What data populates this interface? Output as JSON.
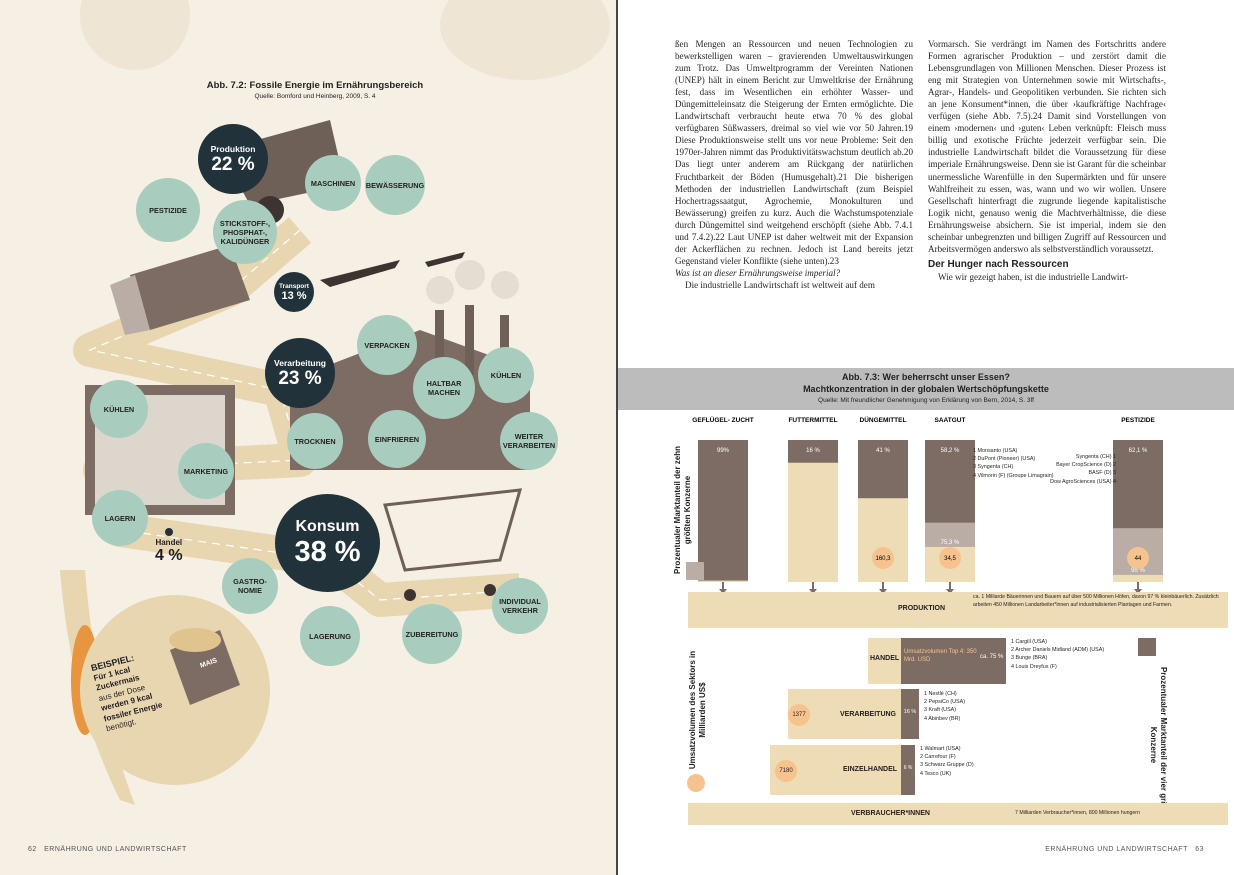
{
  "left": {
    "fig_title": "Abb. 7.2: Fossile Energie im Ernährungsbereich",
    "fig_source": "Quelle: Bomford und Heinberg, 2009, S. 4",
    "produktion": {
      "label": "Produktion",
      "value": "22 %"
    },
    "verarbeitung": {
      "label": "Verarbeitung",
      "value": "23 %"
    },
    "konsum": {
      "label": "Konsum",
      "value": "38 %"
    },
    "transport": {
      "label": "Transport",
      "value": "13 %"
    },
    "handel": {
      "label": "Handel",
      "value": "4 %"
    },
    "circles": {
      "pestizide": "PESTIZIDE",
      "maschinen": "MASCHINEN",
      "bewaesserung": "BEWÄSSERUNG",
      "stickstoff": "STICKSTOFF-, PHOSPHAT-, KALIDÜNGER",
      "verpacken": "VERPACKEN",
      "haltbar": "HALTBAR MACHEN",
      "kuehlen_r": "KÜHLEN",
      "kuehlen_l": "KÜHLEN",
      "trocknen": "TROCKNEN",
      "einfrieren": "EINFRIEREN",
      "weiterverarbeiten": "WEITER VERARBEITEN",
      "marketing": "MARKETING",
      "lagern": "LAGERN",
      "gastronomie": "GASTRO- NOMIE",
      "lagerung": "LAGERUNG",
      "zubereitung": "ZUBEREITUNG",
      "individualverkehr": "INDIVIDUAL VERKEHR"
    },
    "beispiel": {
      "head": "BEISPIEL:",
      "line1": "Für 1 kcal",
      "line2": "Zuckermais",
      "line3": "aus der Dose",
      "line4": "werden 9 kcal",
      "line5": "fossiler Energie",
      "line6": "benötigt.",
      "can": "MAIS"
    },
    "footer": {
      "page": "62",
      "chapter": "ERNÄHRUNG UND LANDWIRTSCHAFT"
    }
  },
  "right": {
    "col1": "ßen Mengen an Ressourcen und neuen Technologien zu bewerkstelligen waren – gravierenden Umweltauswirkungen zum Trotz. Das Umweltprogramm der Vereinten Nationen (UNEP) hält in einem Bericht zur Umweltkrise der Ernährung fest, dass im Wesentlichen ein erhöhter Wasser- und Düngemitteleinsatz die Steigerung der Ernten ermöglichte. Die Landwirtschaft verbraucht heute etwa 70 % des global verfügbaren Süßwassers, dreimal so viel wie vor 50 Jahren.19 Diese Produktionsweise stellt uns vor neue Probleme: Seit den 1970er-Jahren nimmt das Produktivitätswachstum deutlich ab.20 Das liegt unter anderem am Rückgang der natürlichen Fruchtbarkeit der Böden (Humusgehalt).21 Die bisherigen Methoden der industriellen Landwirtschaft (zum Beispiel Hochertragssaatgut, Agrochemie, Monokulturen und Bewässerung) greifen zu kurz. Auch die Wachstumspotenziale durch Düngemittel sind weitgehend erschöpft (siehe Abb. 7.4.1 und 7.4.2).22 Laut UNEP ist daher weltweit mit der Expansion der Ackerflächen zu rechnen. Jedoch ist Land bereits jetzt Gegenstand vieler Konflikte (siehe unten).23",
    "col1_q": "Was ist an dieser Ernährungsweise imperial?",
    "col1_end": "Die industrielle Landwirtschaft ist weltweit auf dem",
    "col2": "Vormarsch. Sie verdrängt im Namen des Fortschritts andere Formen agrarischer Produktion – und zerstört damit die Lebensgrundlagen von Millionen Menschen. Dieser Prozess ist eng mit Strategien von Unternehmen sowie mit Wirtschafts-, Agrar-, Handels- und Geopolitiken verbunden. Sie richten sich an jene Konsument*innen, die über ›kaufkräftige Nachfrage‹ verfügen (siehe Abb. 7.5).24 Damit sind Vorstellungen von einem ›modernen‹ und ›guten‹ Leben verknüpft: Fleisch muss billig und exotische Früchte jederzeit verfügbar sein. Die industrielle Landwirtschaft bildet die Voraussetzung für diese imperiale Ernährungsweise. Denn sie ist Garant für die scheinbar unermessliche Warenfülle in den Supermärkten und für unsere Wahlfreiheit zu essen, was, wann und wo wir wollen. Unsere Gesellschaft hinterfragt die zugrunde liegende kapitalistische Logik nicht, genauso wenig die Machtverhältnisse, die diese Ernährungsweise absichern. Sie ist imperial, indem sie den scheinbar unbegrenzten und billigen Zugriff auf Ressourcen und Arbeitsvermögen anderswo als selbstverständlich voraussetzt.",
    "col2_head": "Der Hunger nach Ressourcen",
    "col2_end": "Wie wir gezeigt haben, ist die industrielle Landwirt-",
    "fig_title1": "Abb. 7.3: Wer beherrscht unser Essen?",
    "fig_title2": "Machtkonzentration in der globalen Wertschöpfungskette",
    "fig_source": "Quelle: Mit freundlicher Genehmigung von Erklärung von Bern, 2014, S. 3ff",
    "y_left": "Prozentualer Marktanteil der zehn größten Konzerne",
    "y_left2": "Umsatzvolumen des Sektors in Milliarden US$",
    "y_right": "Prozentualer Marktanteil der vier größten Konzerne",
    "produktion": "PRODUKTION",
    "produktion_note": "ca. 1 Milliarde Bäuerinnen und Bauern auf über 500 Millionen Höfen, davon 97 % kleinbäuerlich. Zusätzlich arbeiten 450 Millionen Landarbeiter*innen auf industrialisierten Plantagen und Farmen.",
    "handel": "HANDEL",
    "handel_box": "Umsatzvolumen Top 4: 350 Mrd. USD",
    "handel_pct": "ca. 75 %",
    "handel_cos": [
      "Cargill (USA)",
      "Archer Daniels Midland (ADM) (USA)",
      "Bunge (BRA)",
      "Louis Dreyfus (F)"
    ],
    "verarbeitung": "VERARBEITUNG",
    "verarbeitung_val": "1377",
    "verarbeitung_pct": "16 %",
    "verarbeitung_cos": [
      "Nestlé (CH)",
      "PepsiCo (USA)",
      "Kraft (USA)",
      "Abinbev (BR)"
    ],
    "einzelhandel": "EINZELHANDEL",
    "einzelhandel_val": "7180",
    "einzelhandel_pct": "6 %",
    "einzelhandel_cos": [
      "Walmart (USA)",
      "Carrefour (F)",
      "Schwarz Gruppe (D)",
      "Tesco (UK)"
    ],
    "verbraucher": "VERBRAUCHER*INNEN",
    "verbraucher_note": "7 Milliarden Verbraucher*innen, 800 Millionen hungern",
    "saatgut_cos": [
      "Monsanto (USA)",
      "DuPont (Pioneer) (USA)",
      "Syngenta (CH)",
      "Vilmorin (F) (Groupe Limagrain)"
    ],
    "pestizide_cos": [
      "Syngenta (CH)",
      "Bayer CropScience (D)",
      "BASF (D)",
      "Dow AgroSciences (USA)"
    ],
    "footer": {
      "page": "63",
      "chapter": "ERNÄHRUNG UND LANDWIRTSCHAFT"
    }
  },
  "chart_data": {
    "type": "bar",
    "categories": [
      "GEFLÜGEL- ZUCHT",
      "FUTTERMITTEL",
      "DÜNGEMITTEL",
      "SAATGUT",
      "PESTIZIDE"
    ],
    "top10_share": [
      "99%",
      "16 %",
      "41 %",
      "75,3 %",
      "95 %"
    ],
    "top4_share": [
      "",
      "",
      "",
      "58,2 %",
      "62,1 %"
    ],
    "sector_volume": [
      "",
      "",
      "160,3",
      "34,5",
      "44"
    ],
    "units": "Prozent / Milliarden US$",
    "colors": {
      "dark": "#7d6c63",
      "mid": "#b9ada5",
      "light": "#eddcb5",
      "orange": "#f6c38e"
    }
  }
}
